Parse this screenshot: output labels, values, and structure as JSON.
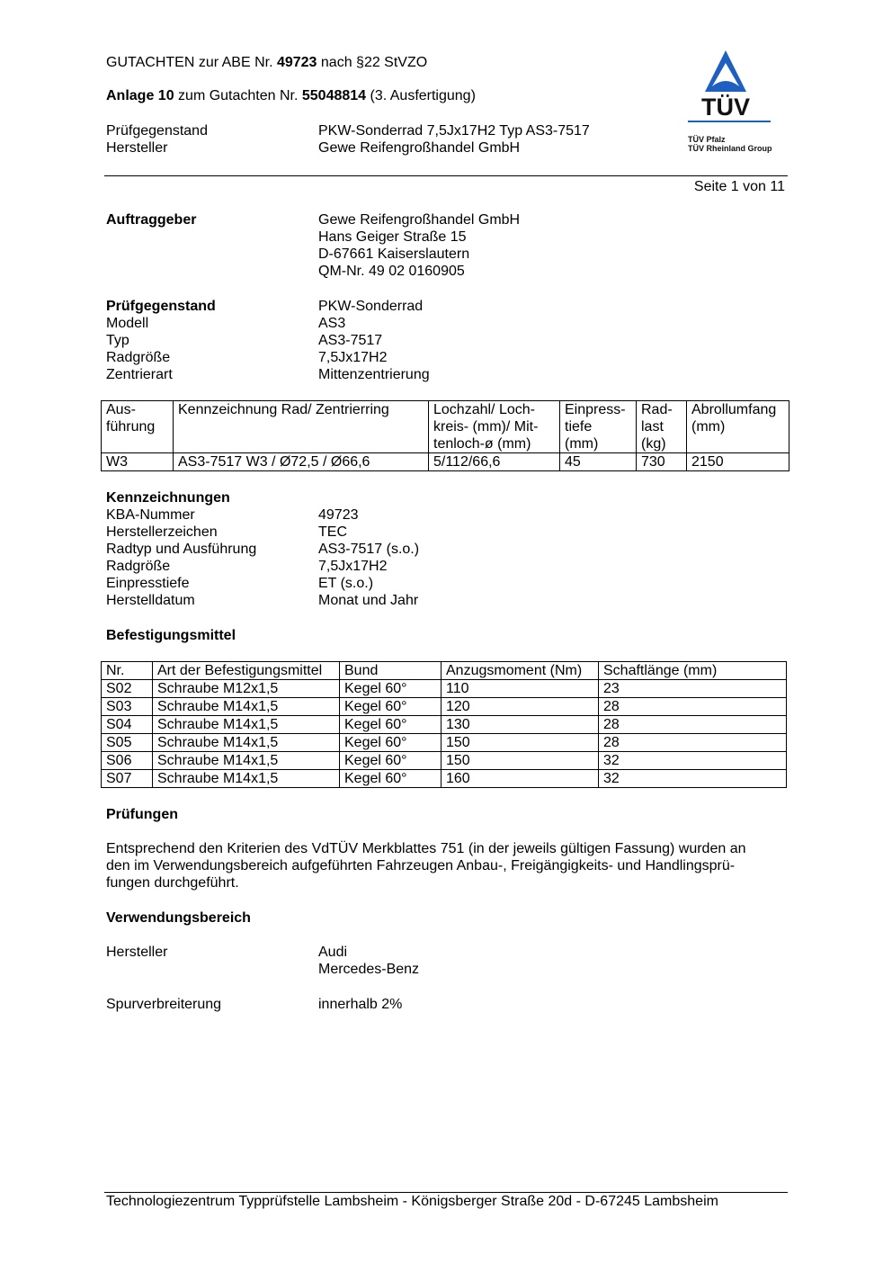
{
  "header": {
    "line1": {
      "prefix": "GUTACHTEN zur ABE Nr. ",
      "number": "49723",
      "suffix": " nach §22 StVZO"
    },
    "line2": {
      "prefix": "Anlage 10",
      "middle": " zum Gutachten Nr. ",
      "number": "55048814",
      "suffix": " (3. Ausfertigung)"
    },
    "meta": [
      {
        "label": "Prüfgegenstand",
        "value": "PKW-Sonderrad 7,5Jx17H2 Typ AS3-7517"
      },
      {
        "label": "Hersteller",
        "value": "Gewe Reifengroßhandel GmbH"
      }
    ],
    "page": "Seite 1 von 11"
  },
  "logo": {
    "brand": "TÜV",
    "line1": "TÜV Pfalz",
    "line2": "TÜV Rheinland Group",
    "blue": "#1f5fbf"
  },
  "auftraggeber": {
    "label": "Auftraggeber",
    "lines": [
      "Gewe Reifengroßhandel GmbH",
      "Hans Geiger Straße 15",
      "D-67661 Kaiserslautern",
      "QM-Nr. 49 02 0160905"
    ]
  },
  "pruefgegenstand": {
    "heading": "Prüfgegenstand",
    "heading_value": "PKW-Sonderrad",
    "rows": [
      {
        "label": "Modell",
        "value": "AS3"
      },
      {
        "label": "Typ",
        "value": "AS3-7517"
      },
      {
        "label": "Radgröße",
        "value": "7,5Jx17H2"
      },
      {
        "label": "Zentrierart",
        "value": "Mittenzentrierung"
      }
    ]
  },
  "wheel_table": {
    "headers": [
      "Aus-\nführung",
      "Kennzeichnung Rad/ Zentrierring",
      "Lochzahl/ Loch-\nkreis- (mm)/ Mit-\ntenloch-ø (mm)",
      "Einpress-\ntiefe\n(mm)",
      "Rad-\nlast\n(kg)",
      "Abrollumfang\n(mm)"
    ],
    "rows": [
      [
        "W3",
        "AS3-7517 W3 / Ø72,5 / Ø66,6",
        "5/112/66,6",
        "45",
        "730",
        "2150"
      ]
    ]
  },
  "kennzeichnungen": {
    "heading": "Kennzeichnungen",
    "rows": [
      {
        "label": "KBA-Nummer",
        "value": "49723"
      },
      {
        "label": "Herstellerzeichen",
        "value": "TEC"
      },
      {
        "label": "Radtyp und Ausführung",
        "value": "AS3-7517 (s.o.)"
      },
      {
        "label": "Radgröße",
        "value": "7,5Jx17H2"
      },
      {
        "label": "Einpresstiefe",
        "value": "ET (s.o.)"
      },
      {
        "label": "Herstelldatum",
        "value": "Monat und Jahr"
      }
    ]
  },
  "befestigung": {
    "heading": "Befestigungsmittel",
    "headers": [
      "Nr.",
      "Art der Befestigungsmittel",
      "Bund",
      "Anzugsmoment (Nm)",
      "Schaftlänge (mm)"
    ],
    "rows": [
      [
        "S02",
        "Schraube M12x1,5",
        "Kegel 60°",
        "110",
        "23"
      ],
      [
        "S03",
        "Schraube M14x1,5",
        "Kegel 60°",
        "120",
        "28"
      ],
      [
        "S04",
        "Schraube M14x1,5",
        "Kegel 60°",
        "130",
        "28"
      ],
      [
        "S05",
        "Schraube M14x1,5",
        "Kegel 60°",
        "150",
        "28"
      ],
      [
        "S06",
        "Schraube M14x1,5",
        "Kegel 60°",
        "150",
        "32"
      ],
      [
        "S07",
        "Schraube M14x1,5",
        "Kegel 60°",
        "160",
        "32"
      ]
    ]
  },
  "pruefungen": {
    "heading": "Prüfungen",
    "lines": [
      "Entsprechend den Kriterien des VdTÜV Merkblattes 751 (in der jeweils gültigen Fassung) wurden an",
      "den im Verwendungsbereich aufgeführten Fahrzeugen Anbau-, Freigängigkeits- und Handlingsprü-",
      "fungen durchgeführt."
    ]
  },
  "verwendungsbereich": {
    "heading": "Verwendungsbereich",
    "hersteller_label": "Hersteller",
    "hersteller": [
      "Audi",
      "Mercedes-Benz"
    ],
    "spur_label": "Spurverbreiterung",
    "spur_value": "innerhalb 2%"
  },
  "footer": "Technologiezentrum Typprüfstelle Lambsheim - Königsberger Straße 20d - D-67245 Lambsheim"
}
